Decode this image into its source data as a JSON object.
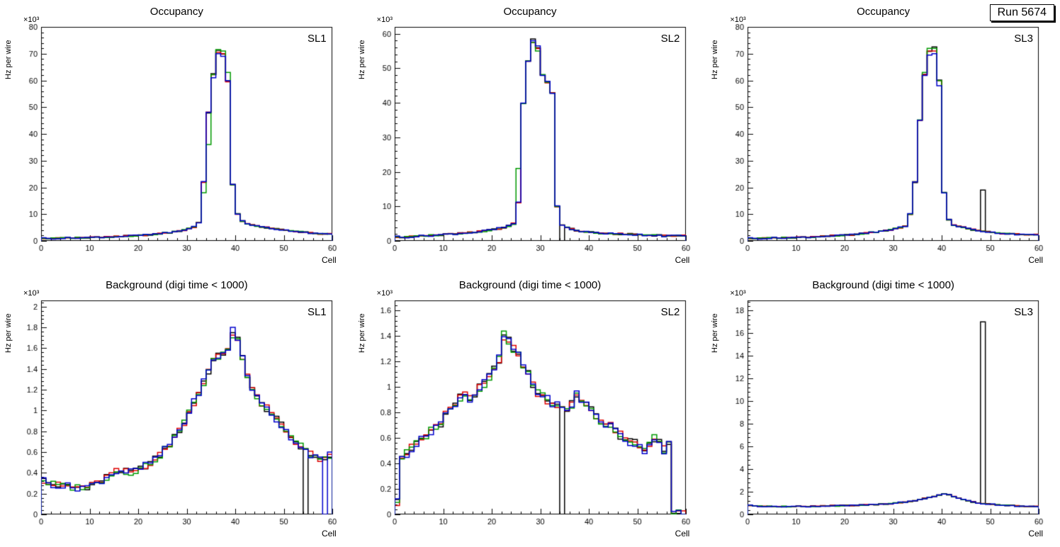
{
  "run_label": "Run 5674",
  "colors": {
    "black": "#000000",
    "red": "#dd0000",
    "green": "#009900",
    "blue": "#0000cc"
  },
  "chart_data": [
    {
      "type": "bar",
      "subtype": "step-histogram-overlay",
      "title": "Occupancy",
      "region_label": "SL1",
      "xlabel": "Cell",
      "ylabel": "Hz per wire",
      "y_multiplier": "×10³",
      "xlim": [
        0,
        60
      ],
      "ylim": [
        0,
        80
      ],
      "xtick_step": 10,
      "ytick_step": 10,
      "x_bins": {
        "start": 0,
        "width": 1,
        "count": 60
      },
      "noise": 0.25,
      "base_values": [
        1.0,
        0.9,
        0.9,
        1.0,
        1.0,
        1.1,
        1.1,
        1.2,
        1.2,
        1.3,
        1.3,
        1.4,
        1.4,
        1.5,
        1.5,
        1.6,
        1.7,
        1.8,
        1.9,
        2.0,
        2.1,
        2.2,
        2.3,
        2.5,
        2.7,
        2.9,
        3.1,
        3.4,
        3.7,
        4.1,
        4.6,
        5.2,
        7.0,
        22,
        48,
        62,
        71,
        70,
        60,
        21,
        10,
        7.5,
        6.5,
        6.0,
        5.5,
        5.2,
        5.0,
        4.7,
        4.4,
        4.2,
        4.0,
        3.8,
        3.6,
        3.4,
        3.2,
        3.0,
        2.8,
        2.6,
        2.5,
        2.6
      ],
      "series": [
        {
          "name": "black",
          "color": "#000000",
          "overrides": {
            "35": 62.5
          }
        },
        {
          "name": "red",
          "color": "#dd0000",
          "overrides": {
            "36": 70.5,
            "38": 59.5
          }
        },
        {
          "name": "green",
          "color": "#009900",
          "overrides": {
            "33": 18,
            "34": 36,
            "36": 71.5,
            "37": 71,
            "38": 63
          }
        },
        {
          "name": "blue",
          "color": "#0000cc",
          "overrides": {
            "35": 61,
            "36": 70,
            "37": 69
          }
        }
      ]
    },
    {
      "type": "bar",
      "subtype": "step-histogram-overlay",
      "title": "Occupancy",
      "region_label": "SL2",
      "xlabel": "Cell",
      "ylabel": "Hz per wire",
      "y_multiplier": "×10³",
      "xlim": [
        0,
        60
      ],
      "ylim": [
        0,
        62
      ],
      "xtick_step": 10,
      "ytick_step": 10,
      "x_bins": {
        "start": 0,
        "width": 1,
        "count": 60
      },
      "noise": 0.25,
      "base_values": [
        1.2,
        1.0,
        1.1,
        1.2,
        1.3,
        1.4,
        1.5,
        1.6,
        1.7,
        1.8,
        1.9,
        2.0,
        2.1,
        2.2,
        2.3,
        2.4,
        2.5,
        2.7,
        2.9,
        3.1,
        3.3,
        3.6,
        3.9,
        4.3,
        5.0,
        11,
        40,
        52,
        58,
        56,
        48,
        46,
        43,
        10,
        4.5,
        3.8,
        3.4,
        3.0,
        2.8,
        2.6,
        2.5,
        2.4,
        2.3,
        2.2,
        2.1,
        2.0,
        2.0,
        1.9,
        1.9,
        1.8,
        1.8,
        1.7,
        1.7,
        1.6,
        1.6,
        1.5,
        1.5,
        1.5,
        1.4,
        1.5
      ],
      "series": [
        {
          "name": "black",
          "color": "#000000",
          "overrides": {
            "28": 58.5,
            "34": 0
          }
        },
        {
          "name": "red",
          "color": "#dd0000",
          "overrides": {
            "28": 57.5
          }
        },
        {
          "name": "green",
          "color": "#009900",
          "overrides": {
            "25": 21,
            "28": 57.5,
            "29": 55
          }
        },
        {
          "name": "blue",
          "color": "#0000cc",
          "overrides": {
            "28": 58,
            "29": 56.5
          }
        }
      ]
    },
    {
      "type": "bar",
      "subtype": "step-histogram-overlay",
      "title": "Occupancy",
      "region_label": "SL3",
      "xlabel": "Cell",
      "ylabel": "Hz per wire",
      "y_multiplier": "×10³",
      "xlim": [
        0,
        60
      ],
      "ylim": [
        0,
        80
      ],
      "xtick_step": 10,
      "ytick_step": 10,
      "x_bins": {
        "start": 0,
        "width": 1,
        "count": 60
      },
      "noise": 0.25,
      "base_values": [
        1.0,
        0.9,
        0.9,
        1.0,
        1.0,
        1.1,
        1.1,
        1.2,
        1.2,
        1.3,
        1.3,
        1.4,
        1.4,
        1.5,
        1.6,
        1.7,
        1.8,
        1.9,
        2.0,
        2.1,
        2.2,
        2.3,
        2.5,
        2.7,
        2.9,
        3.1,
        3.3,
        3.6,
        3.9,
        4.2,
        4.6,
        5.0,
        5.6,
        10,
        22,
        45,
        62,
        71,
        72,
        60,
        18,
        8,
        6,
        5.5,
        5.0,
        4.6,
        4.2,
        3.9,
        3.6,
        3.4,
        3.2,
        3.0,
        2.8,
        2.7,
        2.6,
        2.5,
        2.4,
        2.3,
        2.2,
        2.3
      ],
      "series": [
        {
          "name": "black",
          "color": "#000000",
          "overrides": {
            "38": 72.5,
            "48": 19
          }
        },
        {
          "name": "red",
          "color": "#dd0000",
          "overrides": {
            "38": 71
          }
        },
        {
          "name": "green",
          "color": "#009900",
          "overrides": {
            "36": 63,
            "37": 72,
            "38": 72
          }
        },
        {
          "name": "blue",
          "color": "#0000cc",
          "overrides": {
            "37": 69.5,
            "38": 70,
            "39": 58
          }
        }
      ]
    },
    {
      "type": "bar",
      "subtype": "step-histogram-overlay",
      "title": "Background (digi time < 1000)",
      "region_label": "SL1",
      "xlabel": "Cell",
      "ylabel": "Hz per wire",
      "y_multiplier": "×10³",
      "xlim": [
        0,
        60
      ],
      "ylim": [
        0,
        2.06
      ],
      "xtick_step": 10,
      "ytick_step": 0.2,
      "x_bins": {
        "start": 0,
        "width": 1,
        "count": 60
      },
      "noise": 0.035,
      "base_values": [
        0.33,
        0.3,
        0.29,
        0.28,
        0.27,
        0.27,
        0.26,
        0.26,
        0.27,
        0.27,
        0.28,
        0.3,
        0.33,
        0.36,
        0.39,
        0.41,
        0.42,
        0.41,
        0.41,
        0.42,
        0.44,
        0.47,
        0.5,
        0.53,
        0.57,
        0.62,
        0.68,
        0.74,
        0.81,
        0.89,
        0.98,
        1.08,
        1.18,
        1.28,
        1.38,
        1.47,
        1.52,
        1.55,
        1.6,
        1.73,
        1.68,
        1.52,
        1.35,
        1.22,
        1.12,
        1.06,
        1.02,
        0.97,
        0.91,
        0.86,
        0.8,
        0.75,
        0.7,
        0.66,
        0.62,
        0.58,
        0.56,
        0.53,
        0.52,
        0.55
      ],
      "series": [
        {
          "name": "black",
          "color": "#000000",
          "overrides": {
            "54": 0
          }
        },
        {
          "name": "red",
          "color": "#dd0000",
          "overrides": {
            "35": 1.5
          }
        },
        {
          "name": "green",
          "color": "#009900",
          "overrides": {
            "33": 1.24,
            "39": 1.7
          }
        },
        {
          "name": "blue",
          "color": "#0000cc",
          "overrides": {
            "39": 1.8,
            "58": 0,
            "59": 0.6
          }
        }
      ]
    },
    {
      "type": "bar",
      "subtype": "step-histogram-overlay",
      "title": "Background (digi time < 1000)",
      "region_label": "SL2",
      "xlabel": "Cell",
      "ylabel": "Hz per wire",
      "y_multiplier": "×10³",
      "xlim": [
        0,
        60
      ],
      "ylim": [
        0,
        1.68
      ],
      "xtick_step": 10,
      "ytick_step": 0.2,
      "x_bins": {
        "start": 0,
        "width": 1,
        "count": 60
      },
      "noise": 0.035,
      "base_values": [
        0.1,
        0.45,
        0.48,
        0.52,
        0.55,
        0.58,
        0.62,
        0.66,
        0.7,
        0.72,
        0.78,
        0.82,
        0.88,
        0.92,
        0.95,
        0.9,
        0.94,
        0.99,
        1.03,
        1.08,
        1.14,
        1.22,
        1.4,
        1.36,
        1.3,
        1.24,
        1.18,
        1.1,
        1.02,
        0.96,
        0.93,
        0.9,
        0.88,
        0.86,
        0.83,
        0.8,
        0.86,
        0.94,
        0.9,
        0.86,
        0.82,
        0.78,
        0.74,
        0.71,
        0.69,
        0.66,
        0.62,
        0.59,
        0.56,
        0.56,
        0.53,
        0.51,
        0.56,
        0.6,
        0.56,
        0.51,
        0.56,
        0,
        0,
        0
      ],
      "series": [
        {
          "name": "black",
          "color": "#000000",
          "overrides": {
            "34": 0
          }
        },
        {
          "name": "red",
          "color": "#dd0000",
          "overrides": {
            "22": 1.37
          }
        },
        {
          "name": "green",
          "color": "#009900",
          "overrides": {
            "22": 1.44
          }
        },
        {
          "name": "blue",
          "color": "#0000cc",
          "overrides": {
            "37": 0.97
          }
        }
      ]
    },
    {
      "type": "bar",
      "subtype": "step-histogram-overlay",
      "title": "Background (digi time < 1000)",
      "region_label": "SL3",
      "xlabel": "Cell",
      "ylabel": "Hz per wire",
      "y_multiplier": "×10³",
      "xlim": [
        0,
        60
      ],
      "ylim": [
        0,
        18.9
      ],
      "xtick_step": 10,
      "ytick_step": 2,
      "x_bins": {
        "start": 0,
        "width": 1,
        "count": 60
      },
      "noise": 0.04,
      "base_values": [
        0.8,
        0.75,
        0.72,
        0.7,
        0.7,
        0.68,
        0.68,
        0.7,
        0.7,
        0.72,
        0.72,
        0.7,
        0.7,
        0.72,
        0.72,
        0.74,
        0.74,
        0.76,
        0.76,
        0.78,
        0.78,
        0.8,
        0.8,
        0.82,
        0.84,
        0.86,
        0.88,
        0.9,
        0.92,
        0.95,
        1.0,
        1.05,
        1.1,
        1.15,
        1.2,
        1.3,
        1.4,
        1.5,
        1.6,
        1.7,
        1.8,
        1.75,
        1.6,
        1.45,
        1.3,
        1.2,
        1.1,
        1.0,
        0.95,
        0.92,
        0.9,
        0.85,
        0.82,
        0.8,
        0.78,
        0.75,
        0.72,
        0.7,
        0.68,
        0.7
      ],
      "series": [
        {
          "name": "black",
          "color": "#000000",
          "overrides": {
            "48": 17
          }
        },
        {
          "name": "red",
          "color": "#dd0000",
          "overrides": {}
        },
        {
          "name": "green",
          "color": "#009900",
          "overrides": {}
        },
        {
          "name": "blue",
          "color": "#0000cc",
          "overrides": {}
        }
      ]
    }
  ]
}
